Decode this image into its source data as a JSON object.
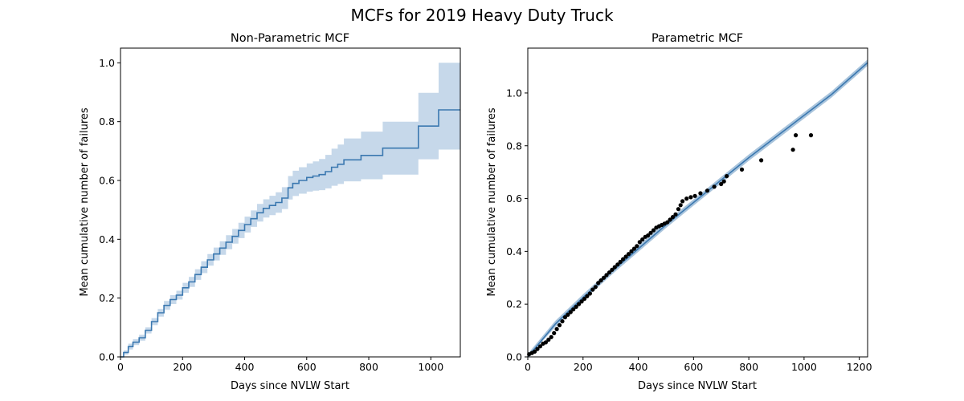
{
  "figure": {
    "title": "MCFs for 2019 Heavy Duty Truck",
    "background": "#ffffff"
  },
  "colors": {
    "line": "#3b78b0",
    "band": "#c6d8ea",
    "points": "#000000",
    "parametric_band": "#a9c4dc"
  },
  "chart_data": [
    {
      "type": "line",
      "subtype": "step",
      "title": "Non-Parametric MCF",
      "xlabel": "Days since NVLW Start",
      "ylabel": "Mean cumulative number of failures",
      "xlim": [
        0,
        1095
      ],
      "ylim": [
        0,
        1.05
      ],
      "xticks": [
        0,
        200,
        400,
        600,
        800,
        1000
      ],
      "yticks": [
        0.0,
        0.2,
        0.4,
        0.6,
        0.8,
        1.0
      ],
      "xtick_labels": [
        "0",
        "200",
        "400",
        "600",
        "800",
        "1000"
      ],
      "ytick_labels": [
        "0.0",
        "0.2",
        "0.4",
        "0.6",
        "0.8",
        "1.0"
      ],
      "grid": false,
      "series": [
        {
          "x": [
            0,
            10,
            25,
            40,
            60,
            80,
            100,
            120,
            140,
            160,
            180,
            200,
            220,
            240,
            260,
            280,
            300,
            320,
            340,
            360,
            380,
            400,
            420,
            440,
            460,
            480,
            500,
            520,
            540,
            555,
            575,
            600,
            620,
            640,
            660,
            680,
            700,
            720,
            775,
            845,
            960,
            1025,
            1095
          ],
          "y": [
            0.0,
            0.015,
            0.035,
            0.05,
            0.065,
            0.09,
            0.12,
            0.15,
            0.175,
            0.195,
            0.21,
            0.235,
            0.255,
            0.28,
            0.305,
            0.33,
            0.35,
            0.37,
            0.39,
            0.41,
            0.43,
            0.45,
            0.47,
            0.49,
            0.505,
            0.515,
            0.525,
            0.54,
            0.575,
            0.59,
            0.6,
            0.61,
            0.615,
            0.62,
            0.63,
            0.645,
            0.655,
            0.67,
            0.685,
            0.71,
            0.785,
            0.84,
            0.84
          ],
          "lower": [
            0.0,
            0.008,
            0.025,
            0.04,
            0.055,
            0.08,
            0.108,
            0.137,
            0.16,
            0.18,
            0.195,
            0.218,
            0.238,
            0.262,
            0.285,
            0.31,
            0.328,
            0.347,
            0.366,
            0.385,
            0.404,
            0.423,
            0.442,
            0.46,
            0.474,
            0.482,
            0.49,
            0.503,
            0.535,
            0.547,
            0.555,
            0.562,
            0.565,
            0.567,
            0.573,
            0.582,
            0.588,
            0.597,
            0.604,
            0.62,
            0.672,
            0.705,
            0.705
          ],
          "upper": [
            0.0,
            0.022,
            0.045,
            0.06,
            0.075,
            0.1,
            0.132,
            0.163,
            0.19,
            0.21,
            0.225,
            0.252,
            0.272,
            0.298,
            0.325,
            0.35,
            0.372,
            0.393,
            0.414,
            0.435,
            0.456,
            0.477,
            0.498,
            0.52,
            0.536,
            0.548,
            0.56,
            0.577,
            0.615,
            0.633,
            0.645,
            0.658,
            0.665,
            0.673,
            0.687,
            0.708,
            0.722,
            0.743,
            0.766,
            0.8,
            0.898,
            1.0,
            1.0
          ]
        }
      ]
    },
    {
      "type": "scatter",
      "title": "Parametric MCF",
      "xlabel": "Days since NVLW Start",
      "ylabel": "Mean cumulative number of failures",
      "xlim": [
        0,
        1230
      ],
      "ylim": [
        0,
        1.17
      ],
      "xticks": [
        0,
        200,
        400,
        600,
        800,
        1000,
        1200
      ],
      "yticks": [
        0.0,
        0.2,
        0.4,
        0.6,
        0.8,
        1.0
      ],
      "xtick_labels": [
        "0",
        "200",
        "400",
        "600",
        "800",
        "1000",
        "1200"
      ],
      "ytick_labels": [
        "0.0",
        "0.2",
        "0.4",
        "0.6",
        "0.8",
        "1.0"
      ],
      "grid": false,
      "fit": {
        "x": [
          0,
          100,
          200,
          300,
          400,
          500,
          600,
          700,
          800,
          900,
          1000,
          1100,
          1230
        ],
        "y": [
          0.0,
          0.125,
          0.225,
          0.32,
          0.41,
          0.5,
          0.585,
          0.67,
          0.755,
          0.835,
          0.915,
          0.995,
          1.115
        ],
        "band_halfwidth": 0.012
      },
      "points": {
        "x": [
          5,
          15,
          25,
          35,
          45,
          55,
          65,
          75,
          85,
          95,
          105,
          115,
          125,
          135,
          145,
          155,
          165,
          175,
          185,
          195,
          205,
          215,
          225,
          235,
          245,
          255,
          265,
          275,
          285,
          295,
          305,
          315,
          325,
          335,
          345,
          355,
          365,
          375,
          385,
          395,
          405,
          415,
          425,
          435,
          445,
          455,
          465,
          475,
          485,
          495,
          505,
          515,
          525,
          535,
          545,
          553,
          560,
          575,
          590,
          605,
          625,
          650,
          675,
          700,
          710,
          720,
          775,
          845,
          960,
          970,
          1025
        ],
        "y": [
          0.01,
          0.015,
          0.02,
          0.03,
          0.04,
          0.05,
          0.055,
          0.065,
          0.075,
          0.09,
          0.105,
          0.12,
          0.135,
          0.15,
          0.16,
          0.17,
          0.18,
          0.19,
          0.2,
          0.21,
          0.22,
          0.23,
          0.24,
          0.255,
          0.265,
          0.28,
          0.29,
          0.3,
          0.31,
          0.32,
          0.33,
          0.34,
          0.35,
          0.36,
          0.37,
          0.38,
          0.39,
          0.4,
          0.41,
          0.42,
          0.435,
          0.445,
          0.455,
          0.46,
          0.47,
          0.48,
          0.49,
          0.495,
          0.5,
          0.505,
          0.51,
          0.52,
          0.53,
          0.54,
          0.56,
          0.575,
          0.59,
          0.6,
          0.605,
          0.61,
          0.62,
          0.63,
          0.645,
          0.655,
          0.665,
          0.685,
          0.71,
          0.745,
          0.785,
          0.84,
          0.84
        ]
      }
    }
  ]
}
